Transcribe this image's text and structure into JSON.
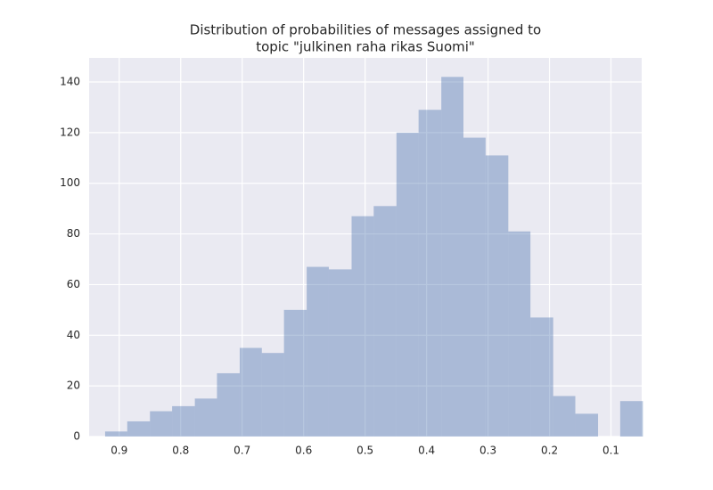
{
  "chart_data": {
    "type": "histogram",
    "title": [
      "Distribution of probabilities of messages assigned to",
      "topic \"julkinen raha rikas Suomi\""
    ],
    "bins": [
      0.923,
      0.887,
      0.85,
      0.814,
      0.777,
      0.741,
      0.704,
      0.668,
      0.632,
      0.595,
      0.559,
      0.522,
      0.486,
      0.449,
      0.413,
      0.376,
      0.34,
      0.304,
      0.267,
      0.231,
      0.194,
      0.158,
      0.121,
      0.085,
      0.048
    ],
    "values": [
      2,
      6,
      10,
      12,
      15,
      25,
      35,
      33,
      50,
      67,
      66,
      87,
      91,
      120,
      129,
      142,
      118,
      111,
      81,
      47,
      16,
      9,
      0,
      14
    ],
    "color": "#4c72b0",
    "opacity": 0.4,
    "background": "#eaeaf2",
    "xlim": [
      0.949,
      0.05
    ],
    "xticks": [
      0.9,
      0.8,
      0.7,
      0.6,
      0.5,
      0.4,
      0.3,
      0.2,
      0.1
    ],
    "ylim": [
      0,
      149.5
    ],
    "yticks": [
      0,
      20,
      40,
      60,
      80,
      100,
      120,
      140
    ],
    "grid": true
  }
}
